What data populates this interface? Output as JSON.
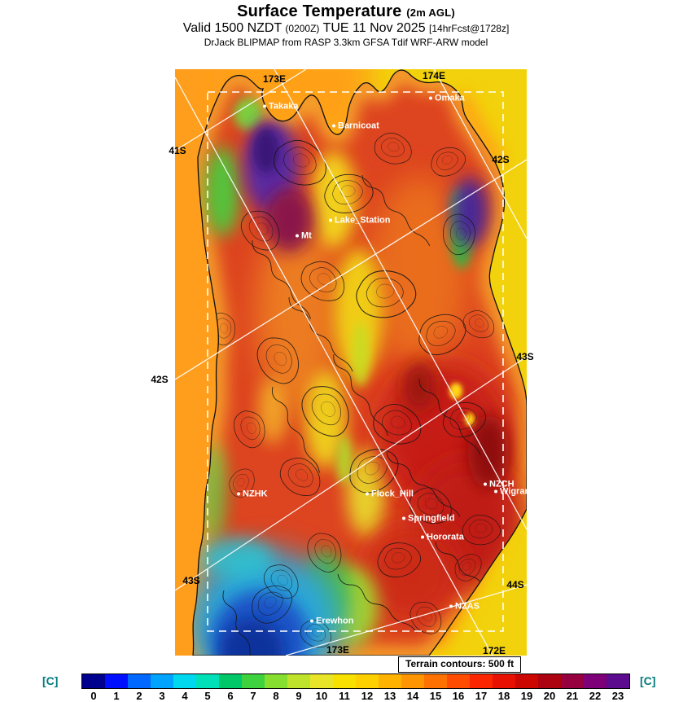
{
  "header": {
    "title": "Surface Temperature",
    "title_suffix": "(2m AGL)",
    "valid": {
      "prefix": "Valid 1500 NZDT",
      "zulu": "(0200Z)",
      "date": "TUE 11 Nov 2025",
      "fcst": "[14hrFcst@1728z]"
    },
    "model_line": "DrJack BLIPMAP from RASP 3.3km GFSA Tdif WRF-ARW model"
  },
  "map": {
    "places": [
      "Takaka",
      "Barnicoat",
      "Omaka",
      "Lake_Station",
      "Mt",
      "NZHK",
      "Flock_Hill",
      "NZCH",
      "Wigram",
      "Springfield",
      "Hororata",
      "NZAS",
      "Erewhon"
    ],
    "grid": {
      "t173": "173E",
      "t174": "174E",
      "l41": "41S",
      "l42": "42S",
      "l43": "43S",
      "r42": "42S",
      "r43": "43S",
      "r44": "44S",
      "b173": "173E",
      "b172": "172E"
    },
    "terrain_note": "Terrain contours: 500 ft"
  },
  "colorbar": {
    "unit_left": "[C]",
    "unit_right": "[C]",
    "items": [
      {
        "label": "0",
        "color": "#00008f"
      },
      {
        "label": "1",
        "color": "#0010ff"
      },
      {
        "label": "2",
        "color": "#0068ff"
      },
      {
        "label": "3",
        "color": "#00a4ff"
      },
      {
        "label": "4",
        "color": "#00d8f0"
      },
      {
        "label": "5",
        "color": "#00e0b8"
      },
      {
        "label": "6",
        "color": "#00c767"
      },
      {
        "label": "7",
        "color": "#3fd23f"
      },
      {
        "label": "8",
        "color": "#86de2f"
      },
      {
        "label": "9",
        "color": "#bfe32a"
      },
      {
        "label": "10",
        "color": "#e8e428"
      },
      {
        "label": "11",
        "color": "#f8e000"
      },
      {
        "label": "12",
        "color": "#ffd000"
      },
      {
        "label": "13",
        "color": "#ffb300"
      },
      {
        "label": "14",
        "color": "#ff9500"
      },
      {
        "label": "15",
        "color": "#ff7100"
      },
      {
        "label": "16",
        "color": "#ff4c00"
      },
      {
        "label": "17",
        "color": "#fb2500"
      },
      {
        "label": "18",
        "color": "#e81000"
      },
      {
        "label": "19",
        "color": "#cc0700"
      },
      {
        "label": "20",
        "color": "#ad0210"
      },
      {
        "label": "21",
        "color": "#96003f"
      },
      {
        "label": "22",
        "color": "#7d0078"
      },
      {
        "label": "23",
        "color": "#5c0b8f"
      }
    ]
  },
  "chart_data": {
    "type": "heatmap",
    "title": "Surface Temperature (2m AGL)",
    "valid": "1500 NZDT (0200Z) TUE 11 Nov 2025",
    "forecast_info": "14hrFcst@1728z",
    "model": "DrJack BLIPMAP from RASP 3.3km GFSA Tdif WRF-ARW model",
    "units": "C",
    "value_range": [
      0,
      23
    ],
    "colorbar_ticks": [
      0,
      1,
      2,
      3,
      4,
      5,
      6,
      7,
      8,
      9,
      10,
      11,
      12,
      13,
      14,
      15,
      16,
      17,
      18,
      19,
      20,
      21,
      22,
      23
    ],
    "colorbar_colors": [
      "#00008f",
      "#0010ff",
      "#0068ff",
      "#00a4ff",
      "#00d8f0",
      "#00e0b8",
      "#00c767",
      "#3fd23f",
      "#86de2f",
      "#bfe32a",
      "#e8e428",
      "#f8e000",
      "#ffd000",
      "#ffb300",
      "#ff9500",
      "#ff7100",
      "#ff4c00",
      "#fb2500",
      "#e81000",
      "#cc0700",
      "#ad0210",
      "#96003f",
      "#7d0078",
      "#5c0b8f"
    ],
    "terrain_contour_interval": "500 ft",
    "latitude_lines": [
      "41S",
      "42S",
      "43S",
      "44S"
    ],
    "longitude_lines": [
      "172E",
      "173E",
      "174E"
    ],
    "stations": [
      "Takaka",
      "Barnicoat",
      "Omaka",
      "Lake_Station",
      "Mt",
      "NZHK",
      "Flock_Hill",
      "NZCH",
      "Wigram",
      "Springfield",
      "Hororata",
      "NZAS",
      "Erewhon"
    ]
  }
}
